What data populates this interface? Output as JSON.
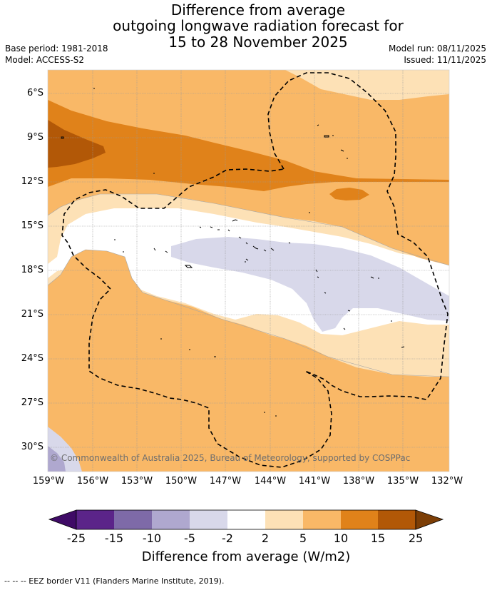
{
  "title": {
    "line1": "Difference from average",
    "line2": "outgoing longwave radiation forecast for",
    "line3": "15 to 28 November 2025"
  },
  "meta": {
    "base_period": "Base period: 1981-2018",
    "model": "Model: ACCESS-S2",
    "model_run": "Model run: 08/11/2025",
    "issued": "Issued: 11/11/2025"
  },
  "axes": {
    "lat_labels": [
      "6°S",
      "9°S",
      "12°S",
      "15°S",
      "18°S",
      "21°S",
      "24°S",
      "27°S",
      "30°S"
    ],
    "lon_labels": [
      "159°W",
      "156°W",
      "153°W",
      "150°W",
      "147°W",
      "144°W",
      "141°W",
      "138°W",
      "135°W",
      "132°W"
    ]
  },
  "copyright": "© Commonwealth of Australia 2025, Bureau of Meteorology, supported by COSPPac",
  "colorbar": {
    "title": "Difference from average (W/m2)",
    "ticks": [
      "-25",
      "-15",
      "-10",
      "-5",
      "-2",
      "2",
      "5",
      "10",
      "15",
      "25"
    ],
    "colors": [
      "#5b2489",
      "#7e6aa8",
      "#afa8cf",
      "#d8d8ea",
      "#ffffff",
      "#fde1b6",
      "#f9b867",
      "#e0821a",
      "#b25807"
    ],
    "under_color": "#3f0b66",
    "over_color": "#7c3e06"
  },
  "palette": {
    "ocean_neutral": "#ffffff",
    "pos_light": "#fde1b6",
    "pos_mid": "#f9b867",
    "pos_strong": "#e0821a",
    "pos_very_strong": "#b25807",
    "neg_light": "#d8d8ea",
    "neg_mid": "#afa8cf"
  },
  "eez_note": "--  --  -- EEZ border V11 (Flanders Marine Institute, 2019)."
}
